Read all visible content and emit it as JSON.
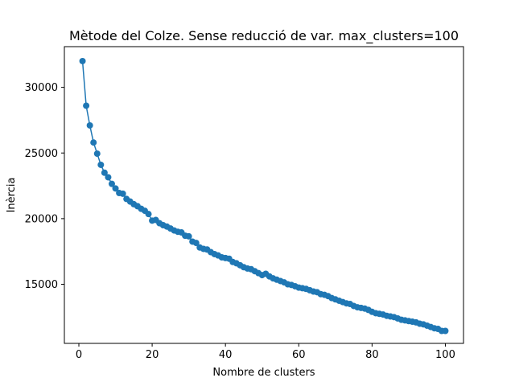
{
  "chart_data": {
    "type": "line",
    "title": "Mètode del Colze. Sense reducció de var. max_clusters=100",
    "xlabel": "Nombre de clusters",
    "ylabel": "Inèrcia",
    "xlim": [
      -3.95,
      104.95
    ],
    "ylim": [
      10500,
      33100
    ],
    "xticks": [
      0,
      20,
      40,
      60,
      80,
      100
    ],
    "yticks": [
      15000,
      20000,
      25000,
      30000
    ],
    "grid": false,
    "marker": "circle",
    "color": "#1f77b4",
    "series": [
      {
        "x": [
          1,
          2,
          3,
          4,
          5,
          6,
          7,
          8,
          9,
          10,
          11,
          12,
          13,
          14,
          15,
          16,
          17,
          18,
          19,
          20,
          21,
          22,
          23,
          24,
          25,
          26,
          27,
          28,
          29,
          30,
          31,
          32,
          33,
          34,
          35,
          36,
          37,
          38,
          39,
          40,
          41,
          42,
          43,
          44,
          45,
          46,
          47,
          48,
          49,
          50,
          51,
          52,
          53,
          54,
          55,
          56,
          57,
          58,
          59,
          60,
          61,
          62,
          63,
          64,
          65,
          66,
          67,
          68,
          69,
          70,
          71,
          72,
          73,
          74,
          75,
          76,
          77,
          78,
          79,
          80,
          81,
          82,
          83,
          84,
          85,
          86,
          87,
          88,
          89,
          90,
          91,
          92,
          93,
          94,
          95,
          96,
          97,
          98,
          99,
          100
        ],
        "y": [
          32000,
          28600,
          27100,
          25800,
          24950,
          24100,
          23500,
          23150,
          22650,
          22300,
          21950,
          21900,
          21500,
          21300,
          21100,
          20950,
          20750,
          20600,
          20350,
          19850,
          19900,
          19650,
          19500,
          19400,
          19250,
          19100,
          19000,
          18950,
          18700,
          18650,
          18250,
          18150,
          17800,
          17700,
          17650,
          17450,
          17300,
          17200,
          17050,
          17000,
          16950,
          16700,
          16600,
          16450,
          16300,
          16200,
          16150,
          16000,
          15850,
          15700,
          15800,
          15600,
          15450,
          15350,
          15250,
          15150,
          15000,
          14950,
          14850,
          14750,
          14700,
          14650,
          14550,
          14450,
          14400,
          14250,
          14200,
          14100,
          13950,
          13850,
          13750,
          13650,
          13550,
          13500,
          13350,
          13250,
          13200,
          13150,
          13050,
          12900,
          12800,
          12750,
          12700,
          12600,
          12550,
          12500,
          12400,
          12300,
          12250,
          12200,
          12150,
          12100,
          12000,
          11950,
          11850,
          11750,
          11650,
          11600,
          11450,
          11450
        ]
      }
    ]
  }
}
